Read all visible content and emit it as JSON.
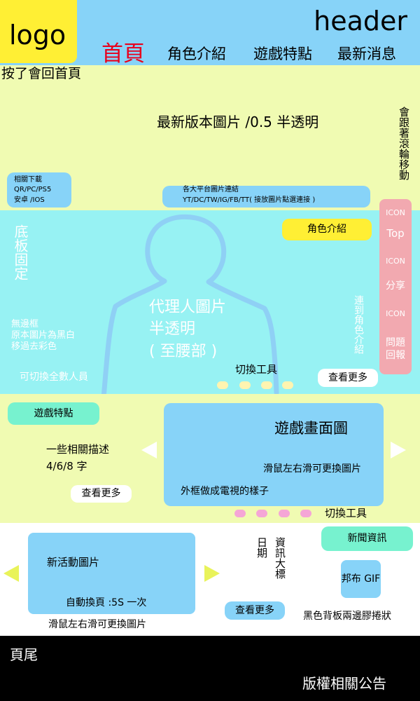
{
  "colors": {
    "header_bg": "#87d3f8",
    "logo_bg": "#ffef34",
    "hero_bg": "#f0fbb2",
    "character_bg": "#97f2f3",
    "section_bg": "#f0fbb2",
    "card_blue": "#87d3f8",
    "side_panel": "#f2a9b0",
    "nav_active": "#e8001c",
    "footer_bg": "#000000",
    "arrow_yellow": "#e9f35a",
    "dot_yellow": "#fff4b0",
    "dot_pink": "#f5a6d6",
    "mint": "#77f2cf"
  },
  "header": {
    "logo": "logo",
    "title": "header",
    "nav": [
      {
        "label": "首頁",
        "active": true
      },
      {
        "label": "角色介紹",
        "active": false
      },
      {
        "label": "遊戲特點",
        "active": false
      },
      {
        "label": "最新消息",
        "active": false
      }
    ],
    "logo_note": "按了會回首頁"
  },
  "hero": {
    "banner_text": "最新版本圖片 /0.5 半透明",
    "scroll_note": "會跟著滾輪移動",
    "download": {
      "line1": "相關下載",
      "line2": "QR/PC/PS5",
      "line3": "安卓 /IOS"
    },
    "platforms": {
      "line1": "各大平台圖片連結",
      "line2": "YT/DC/TW/IG/FB/TT( 接放圖片點選連接 )"
    }
  },
  "side_panel": {
    "icon1": "ICON",
    "top": "Top",
    "icon2": "ICON",
    "share": "分享",
    "icon3": "ICON",
    "report": "問題回報"
  },
  "character": {
    "fixed_note": "底板固定",
    "agent_line1": "代理人圖片",
    "agent_line2": "半透明",
    "agent_line3": "( 至腰部 )",
    "no_border_line1": "無邊框",
    "no_border_line2": "原本圖片為黑白",
    "no_border_line3": "移過去彩色",
    "switch_all": "可切換全數人員",
    "switch_tool": "切換工具",
    "role_button": "角色介紹",
    "link_note": "連到角色介紹",
    "more_button": "查看更多"
  },
  "features": {
    "tag": "遊戲特點",
    "desc_line1": "一些相關描述",
    "desc_line2": "4/6/8 字",
    "more_button": "查看更多",
    "screen_title": "遊戲畫面圖",
    "screen_note1": "滑鼠左右滑可更換圖片",
    "screen_note2": "外框做成電視的樣子",
    "switch_tool": "切換工具"
  },
  "news": {
    "event_title": "新活動圖片",
    "event_note": "自動換頁 :5S 一次",
    "slide_note": "滑鼠左右滑可更換圖片",
    "date": "日期",
    "headline": "資訊大標",
    "more_button": "查看更多",
    "news_tag": "新聞資訊",
    "gif": "邦布 GIF",
    "board_note": "黑色背板兩邊膠捲狀"
  },
  "footer": {
    "title": "頁尾",
    "copyright": "版權相關公告"
  }
}
